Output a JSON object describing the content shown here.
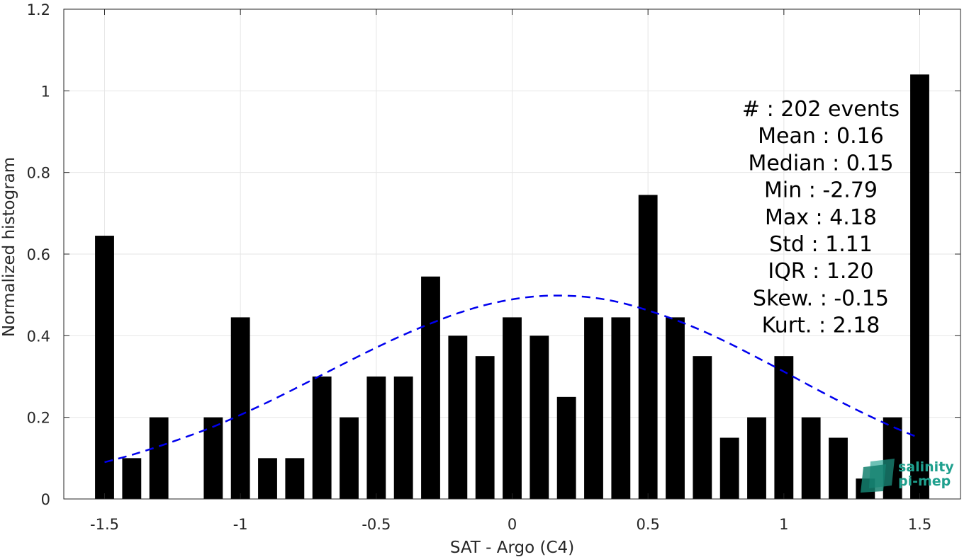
{
  "chart_data": {
    "type": "bar",
    "xlabel": "SAT - Argo (C4)",
    "ylabel": "Normalized histogram",
    "xlim": [
      -1.65,
      1.65
    ],
    "ylim": [
      0,
      1.2
    ],
    "xticks": [
      -1.5,
      -1,
      -0.5,
      0,
      0.5,
      1,
      1.5
    ],
    "xtick_labels": [
      "-1.5",
      "-1",
      "-0.5",
      "0",
      "0.5",
      "1",
      "1.5"
    ],
    "yticks": [
      0,
      0.2,
      0.4,
      0.6,
      0.8,
      1,
      1.2
    ],
    "ytick_labels": [
      "0",
      "0.2",
      "0.4",
      "0.6",
      "0.8",
      "1",
      "1.2"
    ],
    "grid": true,
    "bar_width": 0.07,
    "x": [
      -1.5,
      -1.4,
      -1.3,
      -1.2,
      -1.1,
      -1.0,
      -0.9,
      -0.8,
      -0.7,
      -0.6,
      -0.5,
      -0.4,
      -0.3,
      -0.2,
      -0.1,
      0.0,
      0.1,
      0.2,
      0.3,
      0.4,
      0.5,
      0.6,
      0.7,
      0.8,
      0.9,
      1.0,
      1.1,
      1.2,
      1.3,
      1.4,
      1.5
    ],
    "values": [
      0.645,
      0.1,
      0.2,
      0.0,
      0.2,
      0.445,
      0.1,
      0.1,
      0.3,
      0.2,
      0.3,
      0.3,
      0.545,
      0.4,
      0.35,
      0.445,
      0.4,
      0.25,
      0.445,
      0.445,
      0.745,
      0.445,
      0.35,
      0.15,
      0.2,
      0.35,
      0.2,
      0.15,
      0.05,
      0.2,
      1.04
    ],
    "bar_color": "#000000",
    "fit_curve": {
      "style": "dashed",
      "color": "#0000ee",
      "x": [
        -1.5,
        -1.4,
        -1.3,
        -1.2,
        -1.1,
        -1.0,
        -0.9,
        -0.8,
        -0.7,
        -0.6,
        -0.5,
        -0.4,
        -0.3,
        -0.2,
        -0.1,
        0.0,
        0.1,
        0.2,
        0.3,
        0.4,
        0.5,
        0.6,
        0.7,
        0.8,
        0.9,
        1.0,
        1.1,
        1.2,
        1.3,
        1.4,
        1.5
      ],
      "y": [
        0.09,
        0.108,
        0.129,
        0.152,
        0.177,
        0.206,
        0.237,
        0.27,
        0.304,
        0.338,
        0.371,
        0.402,
        0.43,
        0.455,
        0.475,
        0.489,
        0.497,
        0.498,
        0.493,
        0.481,
        0.462,
        0.439,
        0.412,
        0.381,
        0.347,
        0.312,
        0.276,
        0.241,
        0.208,
        0.177,
        0.149
      ]
    },
    "stats": [
      "#  : 202 events",
      "Mean : 0.16",
      "Median : 0.15",
      "Min : -2.79",
      "Max : 4.18",
      "Std : 1.11",
      "IQR : 1.20",
      "Skew. : -0.15",
      "Kurt. : 2.18"
    ]
  },
  "logo": {
    "line1": "salinity",
    "line2": "pi-mep",
    "color": "#1fa08e"
  }
}
